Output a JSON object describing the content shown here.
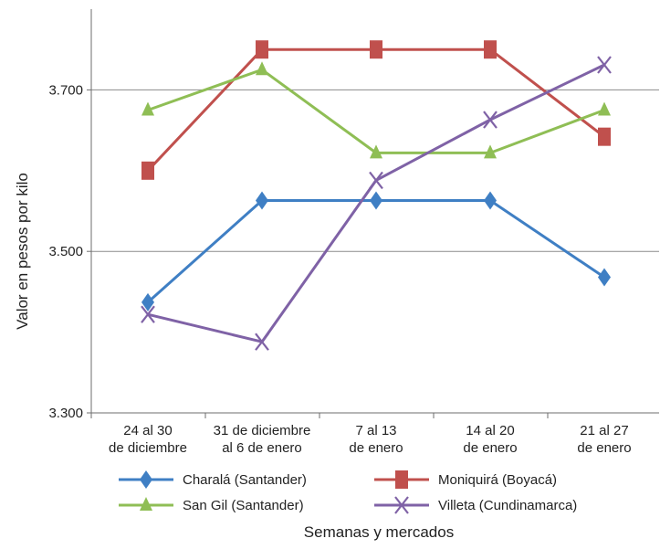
{
  "chart_data": {
    "type": "line",
    "title": "",
    "xlabel": "Semanas y mercados",
    "ylabel": "Valor en pesos por kilo",
    "categories": [
      [
        "24 al 30",
        "de diciembre"
      ],
      [
        "31 de diciembre",
        "al 6 de enero"
      ],
      [
        "7 al 13",
        "de enero"
      ],
      [
        "14 al 20",
        "de enero"
      ],
      [
        "21 al 27",
        "de enero"
      ]
    ],
    "ylim": [
      3300,
      3800
    ],
    "yticks": [
      3300,
      3500,
      3700
    ],
    "ytick_labels": [
      "3.300",
      "3.500",
      "3.700"
    ],
    "grid": "horizontal",
    "legend_position": "bottom",
    "series": [
      {
        "name": "Charalá (Santander)",
        "color": "#3f7fc4",
        "marker": "diamond",
        "values": [
          3437,
          3563,
          3563,
          3563,
          3468
        ]
      },
      {
        "name": "Moniquirá (Boyacá)",
        "color": "#c0504d",
        "marker": "square",
        "values": [
          3600,
          3750,
          3750,
          3750,
          3642
        ]
      },
      {
        "name": "San Gil (Santander)",
        "color": "#8fbe55",
        "marker": "triangle",
        "values": [
          3675,
          3725,
          3622,
          3622,
          3675
        ]
      },
      {
        "name": "Villeta (Cundinamarca)",
        "color": "#7f62a6",
        "marker": "x",
        "values": [
          3422,
          3388,
          3588,
          3663,
          3731
        ]
      }
    ]
  }
}
